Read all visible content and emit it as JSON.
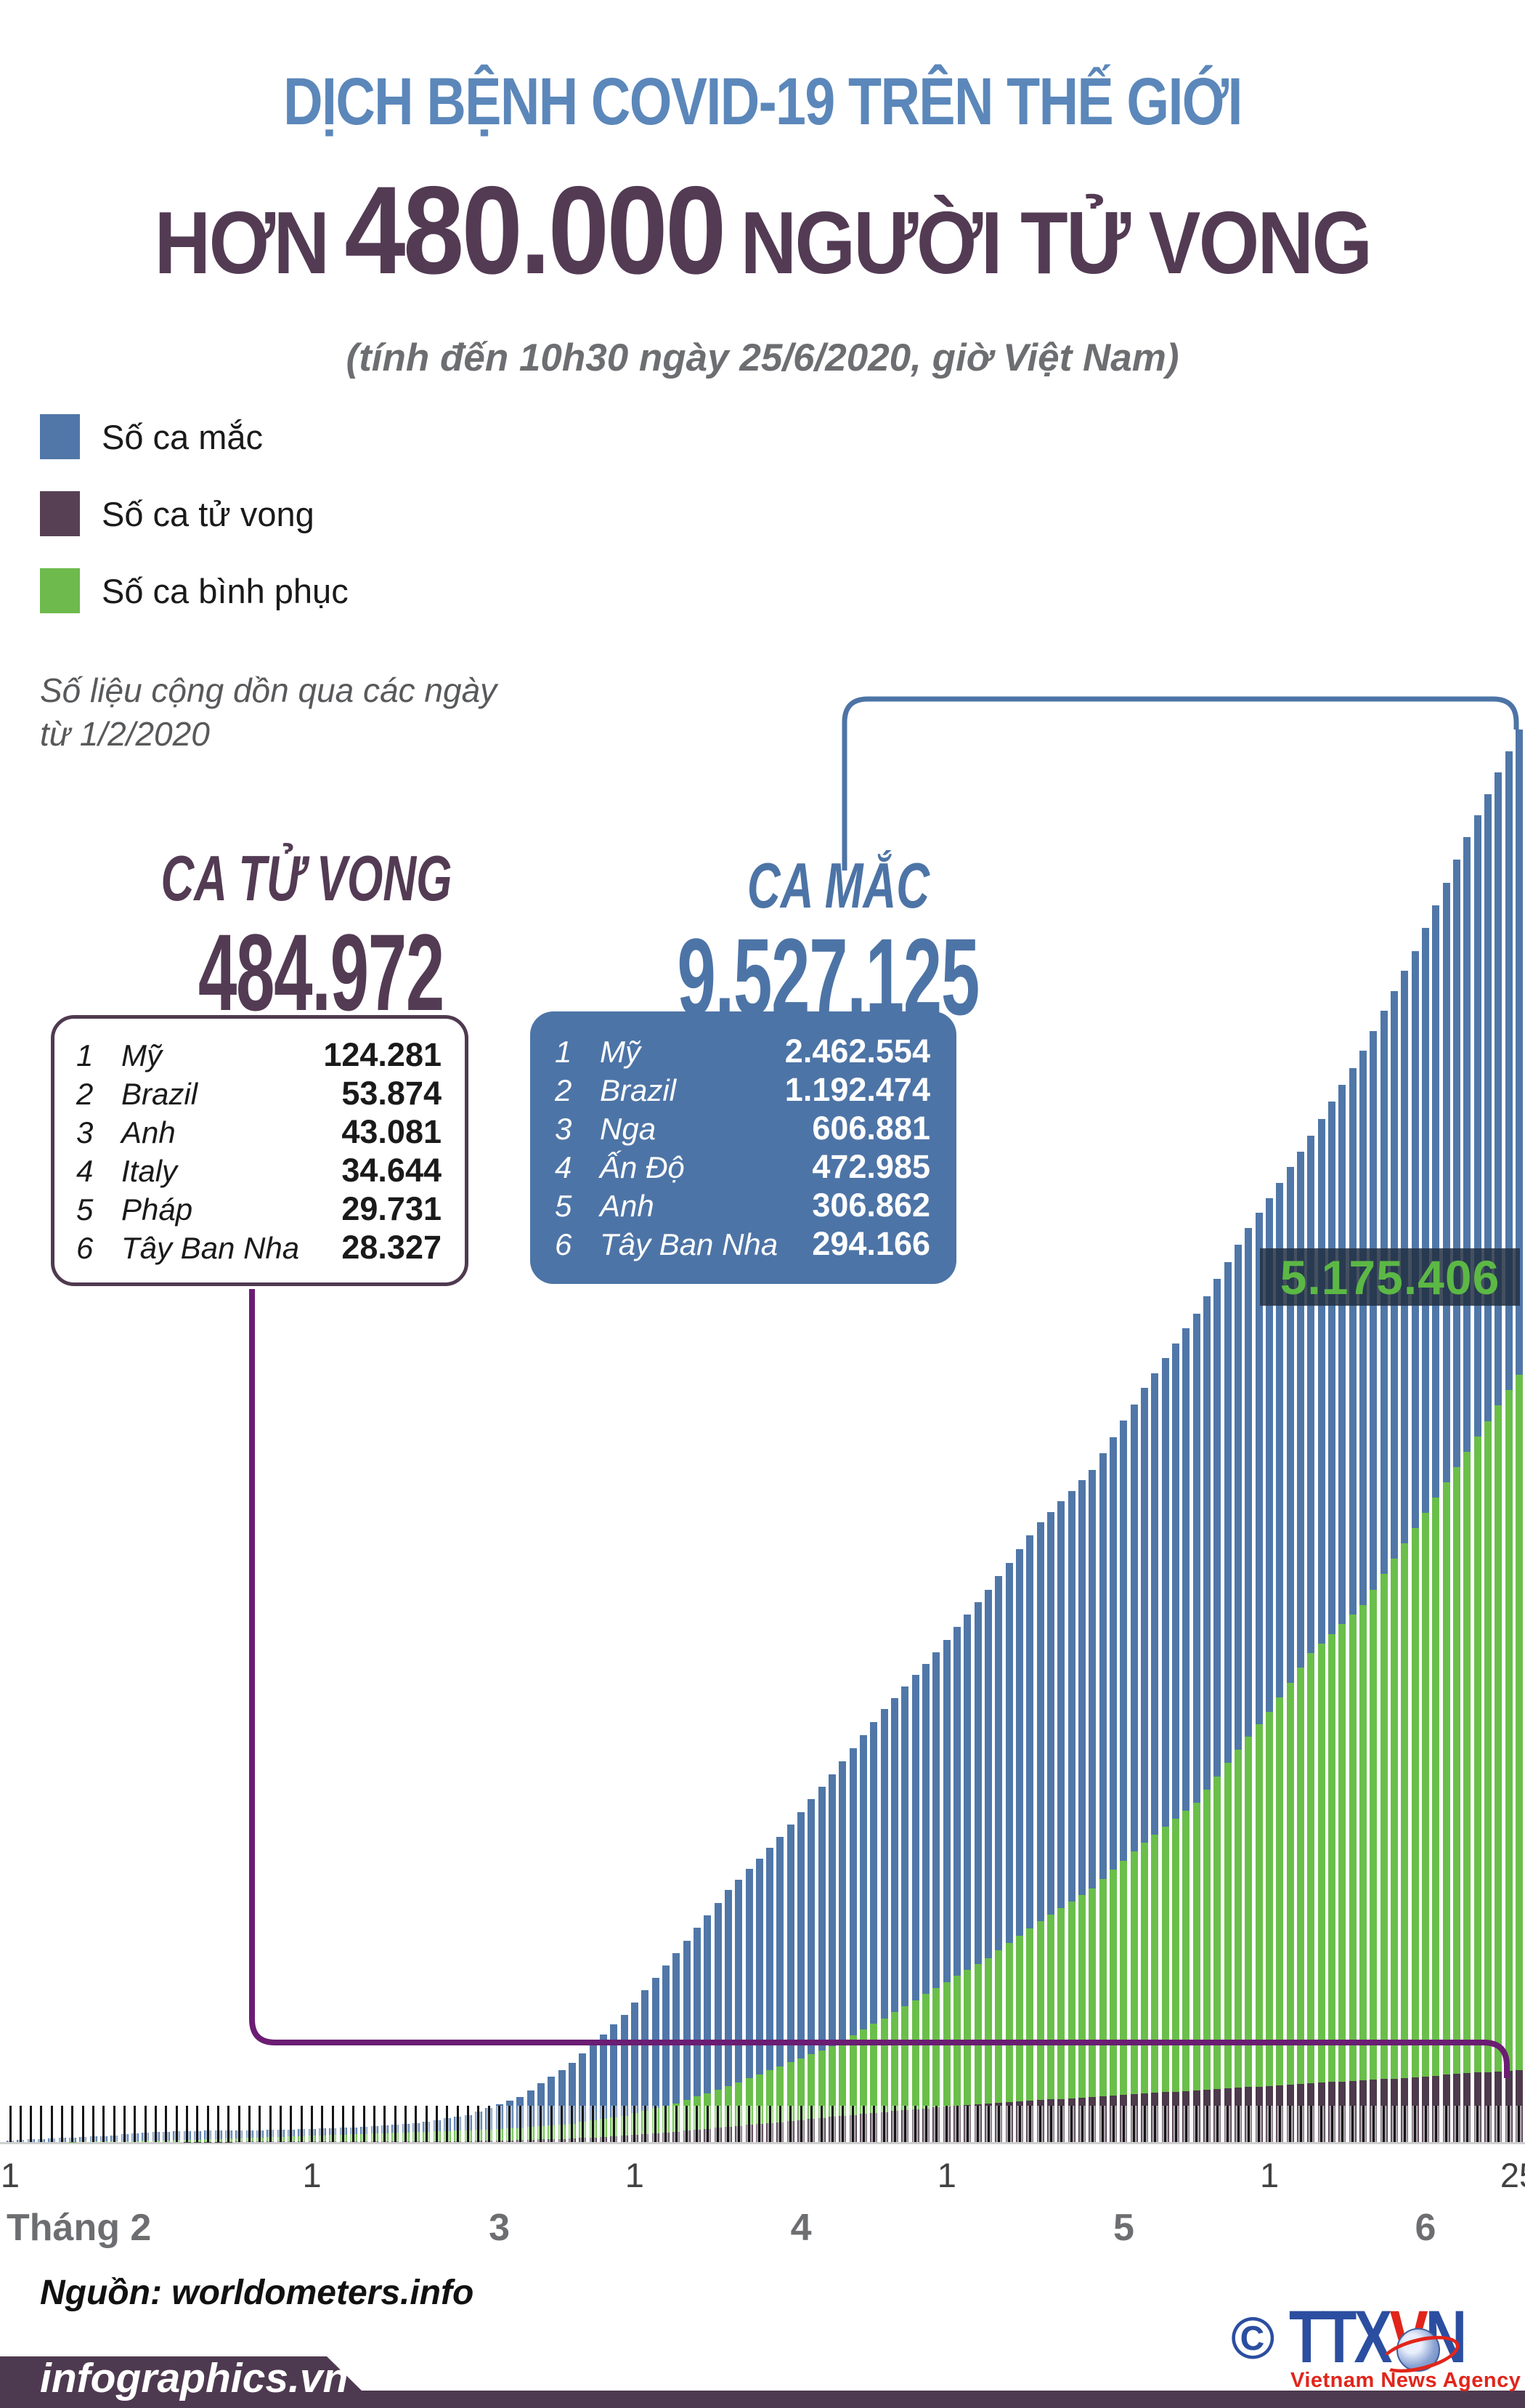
{
  "header": {
    "title": "DỊCH BỆNH COVID-19 TRÊN THẾ GIỚI",
    "headline_prefix": "HƠN",
    "headline_number": "480.000",
    "headline_suffix": "NGƯỜI TỬ VONG",
    "subtitle": "(tính đến 10h30 ngày 25/6/2020, giờ Việt Nam)"
  },
  "legend": {
    "items": [
      {
        "label": "Số ca mắc",
        "color": "#5077a8"
      },
      {
        "label": "Số ca tử vong",
        "color": "#574054"
      },
      {
        "label": "Số ca bình phục",
        "color": "#6eba4d"
      }
    ],
    "note_line1": "Số liệu cộng dồn qua các ngày",
    "note_line2": "từ 1/2/2020"
  },
  "deaths_panel": {
    "title": "CA TỬ VONG",
    "total": "484.972",
    "rows": [
      {
        "rank": "1",
        "name": "Mỹ",
        "value": "124.281"
      },
      {
        "rank": "2",
        "name": "Brazil",
        "value": "53.874"
      },
      {
        "rank": "3",
        "name": "Anh",
        "value": "43.081"
      },
      {
        "rank": "4",
        "name": "Italy",
        "value": "34.644"
      },
      {
        "rank": "5",
        "name": "Pháp",
        "value": "29.731"
      },
      {
        "rank": "6",
        "name": "Tây Ban Nha",
        "value": "28.327"
      }
    ]
  },
  "cases_panel": {
    "title": "CA MẮC",
    "total": "9.527.125",
    "rows": [
      {
        "rank": "1",
        "name": "Mỹ",
        "value": "2.462.554"
      },
      {
        "rank": "2",
        "name": "Brazil",
        "value": "1.192.474"
      },
      {
        "rank": "3",
        "name": "Nga",
        "value": "606.881"
      },
      {
        "rank": "4",
        "name": "Ấn Độ",
        "value": "472.985"
      },
      {
        "rank": "5",
        "name": "Anh",
        "value": "306.862"
      },
      {
        "rank": "6",
        "name": "Tây Ban Nha",
        "value": "294.166"
      }
    ]
  },
  "recovered_label": "5.175.406",
  "axis": {
    "day_labels": [
      {
        "label": "1",
        "day_index": 0
      },
      {
        "label": "1",
        "day_index": 29
      },
      {
        "label": "1",
        "day_index": 60
      },
      {
        "label": "1",
        "day_index": 90
      },
      {
        "label": "1",
        "day_index": 121
      },
      {
        "label": "25",
        "day_index": 145
      }
    ],
    "month_labels": [
      {
        "label": "Tháng 2",
        "day_index": 0,
        "align": "left"
      },
      {
        "label": "3",
        "day_index": 47,
        "align": "center"
      },
      {
        "label": "4",
        "day_index": 76,
        "align": "center"
      },
      {
        "label": "5",
        "day_index": 107,
        "align": "center"
      },
      {
        "label": "6",
        "day_index": 136,
        "align": "center"
      }
    ]
  },
  "footer": {
    "source": "Nguồn: worldometers.info",
    "brand": "infographics.vn",
    "copyright": "©",
    "agency": "TTXVN",
    "agency_letter_colors": [
      "#2b4ea0",
      "#2b4ea0",
      "#2b4ea0",
      "#e1251b",
      "#2b4ea0"
    ],
    "agency_sub": "Vietnam News Agency"
  },
  "colors": {
    "cases": "#5077a8",
    "recovered": "#6abf4a",
    "deaths": "#4d3a4c",
    "bracket_cases": "#4d74a6",
    "bracket_deaths": "#6b1d73",
    "headline": "#533b54",
    "title_blue": "#5b87ba"
  },
  "chart_data": {
    "type": "bar",
    "title": "Số liệu cộng dồn qua các ngày từ 1/2/2020 đến 25/6/2020",
    "x_start_date": "1/2/2020",
    "x_end_date": "25/6/2020",
    "days": 146,
    "ylim": [
      0,
      9527125
    ],
    "grid": false,
    "legend_position": "top-left",
    "series": [
      {
        "key": "cases",
        "name": "Số ca mắc",
        "color": "#5077a8",
        "total": 9527125
      },
      {
        "key": "recovered",
        "name": "Số ca bình phục",
        "color": "#6abf4a",
        "total": 5175406
      },
      {
        "key": "deaths",
        "name": "Số ca tử vong",
        "color": "#4d3a4c",
        "total": 484972
      }
    ],
    "interpolation": "linear-between-anchors",
    "anchors": [
      {
        "day": 0,
        "date": "1/2",
        "cases": 12038,
        "deaths": 259,
        "recovered": 287
      },
      {
        "day": 4,
        "date": "5/2",
        "cases": 24631,
        "deaths": 494,
        "recovered": 907
      },
      {
        "day": 9,
        "date": "10/2",
        "cases": 40645,
        "deaths": 910,
        "recovered": 3558
      },
      {
        "day": 14,
        "date": "15/2",
        "cases": 69267,
        "deaths": 1670,
        "recovered": 9846
      },
      {
        "day": 19,
        "date": "20/2",
        "cases": 76199,
        "deaths": 2247,
        "recovered": 18890
      },
      {
        "day": 24,
        "date": "25/2",
        "cases": 80423,
        "deaths": 2708,
        "recovered": 30004
      },
      {
        "day": 29,
        "date": "1/3",
        "cases": 88585,
        "deaths": 3050,
        "recovered": 42716
      },
      {
        "day": 34,
        "date": "6/3",
        "cases": 101781,
        "deaths": 3460,
        "recovered": 55866
      },
      {
        "day": 39,
        "date": "11/3",
        "cases": 126258,
        "deaths": 4638,
        "recovered": 68285
      },
      {
        "day": 44,
        "date": "16/3",
        "cases": 182406,
        "deaths": 7154,
        "recovered": 79433
      },
      {
        "day": 49,
        "date": "21/3",
        "cases": 304524,
        "deaths": 12973,
        "recovered": 94625
      },
      {
        "day": 54,
        "date": "26/3",
        "cases": 531865,
        "deaths": 24073,
        "recovered": 124326
      },
      {
        "day": 59,
        "date": "31/3",
        "cases": 858355,
        "deaths": 42151,
        "recovered": 178100
      },
      {
        "day": 64,
        "date": "5/4",
        "cases": 1273709,
        "deaths": 69459,
        "recovered": 262060
      },
      {
        "day": 69,
        "date": "10/4",
        "cases": 1698416,
        "deaths": 102734,
        "recovered": 376096
      },
      {
        "day": 74,
        "date": "15/4",
        "cases": 2056055,
        "deaths": 134178,
        "recovered": 511019
      },
      {
        "day": 79,
        "date": "20/4",
        "cases": 2480503,
        "deaths": 170397,
        "recovered": 645738
      },
      {
        "day": 84,
        "date": "25/4",
        "cases": 2919404,
        "deaths": 203164,
        "recovered": 834791
      },
      {
        "day": 89,
        "date": "30/4",
        "cases": 3303296,
        "deaths": 233995,
        "recovered": 1039666
      },
      {
        "day": 94,
        "date": "5/5",
        "cases": 3726292,
        "deaths": 258355,
        "recovered": 1241854
      },
      {
        "day": 99,
        "date": "10/5",
        "cases": 4180602,
        "deaths": 283868,
        "recovered": 1490310
      },
      {
        "day": 104,
        "date": "15/5",
        "cases": 4534731,
        "deaths": 303001,
        "recovered": 1711581
      },
      {
        "day": 109,
        "date": "20/5",
        "cases": 5085350,
        "deaths": 329237,
        "recovered": 2021252
      },
      {
        "day": 114,
        "date": "25/5",
        "cases": 5588383,
        "deaths": 346714,
        "recovered": 2286956
      },
      {
        "day": 119,
        "date": "30/5",
        "cases": 6166978,
        "deaths": 370406,
        "recovered": 2735740
      },
      {
        "day": 121,
        "date": "1/6",
        "cases": 6365492,
        "deaths": 377233,
        "recovered": 2898907
      },
      {
        "day": 125,
        "date": "5/6",
        "cases": 6786890,
        "deaths": 397277,
        "recovered": 3298000
      },
      {
        "day": 130,
        "date": "10/6",
        "cases": 7360239,
        "deaths": 416201,
        "recovered": 3622750
      },
      {
        "day": 135,
        "date": "15/6",
        "cases": 8034461,
        "deaths": 436899,
        "recovered": 4142800
      },
      {
        "day": 140,
        "date": "20/6",
        "cases": 8802398,
        "deaths": 464483,
        "recovered": 4656217
      },
      {
        "day": 145,
        "date": "25/6",
        "cases": 9527125,
        "deaths": 484972,
        "recovered": 5175406
      }
    ]
  }
}
